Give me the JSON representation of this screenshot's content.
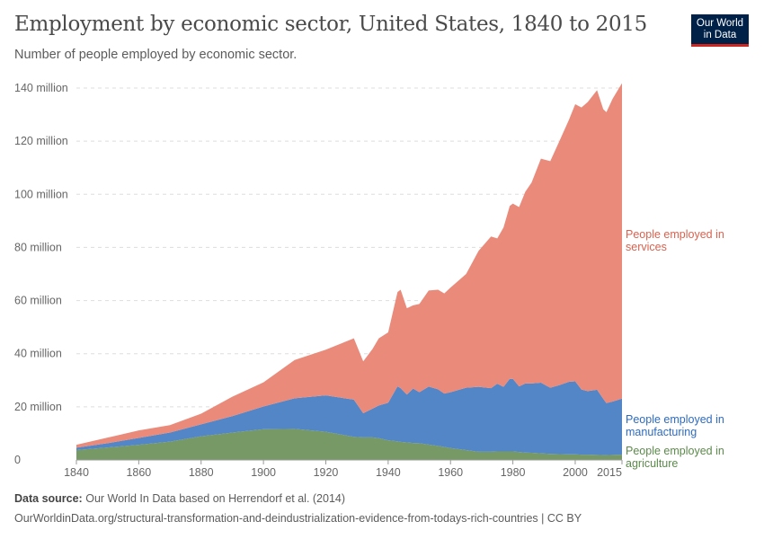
{
  "title": "Employment by economic sector, United States, 1840 to 2015",
  "subtitle": "Number of people employed by economic sector.",
  "logo": {
    "line1": "Our World",
    "line2": "in Data",
    "bg": "#002147",
    "accent": "#ce261e"
  },
  "footer": {
    "source_label": "Data source:",
    "source": "Our World In Data based on Herrendorf et al. (2014)",
    "url": "OurWorldinData.org/structural-transformation-and-deindustrialization-evidence-from-todays-rich-countries | CC BY"
  },
  "chart_data": {
    "type": "area",
    "stacked": true,
    "grid": "horizontal dashed",
    "legend": "right (inline labels)",
    "xlim": [
      1840,
      2015
    ],
    "ylim": [
      0,
      140
    ],
    "yticks": [
      {
        "v": 0,
        "label": "0"
      },
      {
        "v": 20,
        "label": "20 million"
      },
      {
        "v": 40,
        "label": "40 million"
      },
      {
        "v": 60,
        "label": "60 million"
      },
      {
        "v": 80,
        "label": "80 million"
      },
      {
        "v": 100,
        "label": "100 million"
      },
      {
        "v": 120,
        "label": "120 million"
      },
      {
        "v": 140,
        "label": "140 million"
      }
    ],
    "xticks": [
      {
        "v": 1840,
        "label": "1840"
      },
      {
        "v": 1860,
        "label": "1860"
      },
      {
        "v": 1880,
        "label": "1880"
      },
      {
        "v": 1900,
        "label": "1900"
      },
      {
        "v": 1920,
        "label": "1920"
      },
      {
        "v": 1940,
        "label": "1940"
      },
      {
        "v": 1960,
        "label": "1960"
      },
      {
        "v": 1980,
        "label": "1980"
      },
      {
        "v": 2000,
        "label": "2000"
      },
      {
        "v": 2015,
        "label": "2015"
      }
    ],
    "x": [
      1840,
      1850,
      1860,
      1870,
      1880,
      1890,
      1900,
      1910,
      1920,
      1929,
      1932,
      1935,
      1937,
      1940,
      1943,
      1944,
      1946,
      1948,
      1950,
      1953,
      1956,
      1958,
      1960,
      1965,
      1969,
      1973,
      1975,
      1977,
      1979,
      1980,
      1982,
      1984,
      1986,
      1989,
      1992,
      1995,
      1998,
      2000,
      2002,
      2004,
      2007,
      2009,
      2010,
      2012,
      2015
    ],
    "series": [
      {
        "name": "People employed in agriculture",
        "color": "#779966",
        "label_color": "#5b8a4a",
        "values": [
          3.7,
          4.7,
          5.7,
          6.9,
          8.9,
          10.3,
          11.6,
          11.7,
          10.6,
          8.7,
          8.5,
          8.5,
          8.2,
          7.4,
          7.0,
          6.8,
          6.6,
          6.4,
          6.3,
          5.8,
          5.3,
          4.9,
          4.5,
          3.7,
          3.1,
          3.1,
          3.2,
          3.2,
          3.2,
          3.2,
          3.0,
          2.8,
          2.7,
          2.5,
          2.3,
          2.2,
          2.1,
          2.1,
          2.0,
          2.0,
          1.9,
          1.8,
          1.8,
          1.9,
          2.0
        ]
      },
      {
        "name": "People employed in manufacturing",
        "color": "#5286c6",
        "label_color": "#2e6bbf",
        "values": [
          0.9,
          1.6,
          2.6,
          3.4,
          4.5,
          6.2,
          8.5,
          11.5,
          13.7,
          14.0,
          9.1,
          10.8,
          12.3,
          14.1,
          20.7,
          20.2,
          18.0,
          20.5,
          19.2,
          21.8,
          21.3,
          20.1,
          21.0,
          23.5,
          24.4,
          23.9,
          25.5,
          24.3,
          27.3,
          27.3,
          24.7,
          26.0,
          26.1,
          26.6,
          24.9,
          26.0,
          27.3,
          27.5,
          24.5,
          23.9,
          24.5,
          21.2,
          19.6,
          20.1,
          21.1
        ]
      },
      {
        "name": "People employed in services",
        "color": "#ea8a7a",
        "label_color": "#d9624f",
        "values": [
          1.1,
          2.1,
          2.8,
          2.8,
          4.0,
          7.3,
          9.1,
          14.4,
          17.2,
          23.1,
          19.5,
          22.5,
          25.3,
          26.5,
          35.5,
          37.1,
          32.5,
          31.3,
          33.2,
          36.2,
          37.5,
          37.7,
          39.4,
          42.8,
          51.2,
          57.1,
          54.7,
          60.0,
          65.1,
          66.0,
          67.5,
          72.2,
          75.6,
          84.3,
          85.3,
          92.0,
          98.7,
          104.3,
          106.2,
          108.8,
          112.8,
          109.0,
          109.5,
          114.0,
          118.7
        ]
      }
    ],
    "labels": {
      "services": [
        "People employed in",
        "services"
      ],
      "manufacturing": [
        "People employed in",
        "manufacturing"
      ],
      "agriculture": [
        "People employed in",
        "agriculture"
      ]
    }
  }
}
